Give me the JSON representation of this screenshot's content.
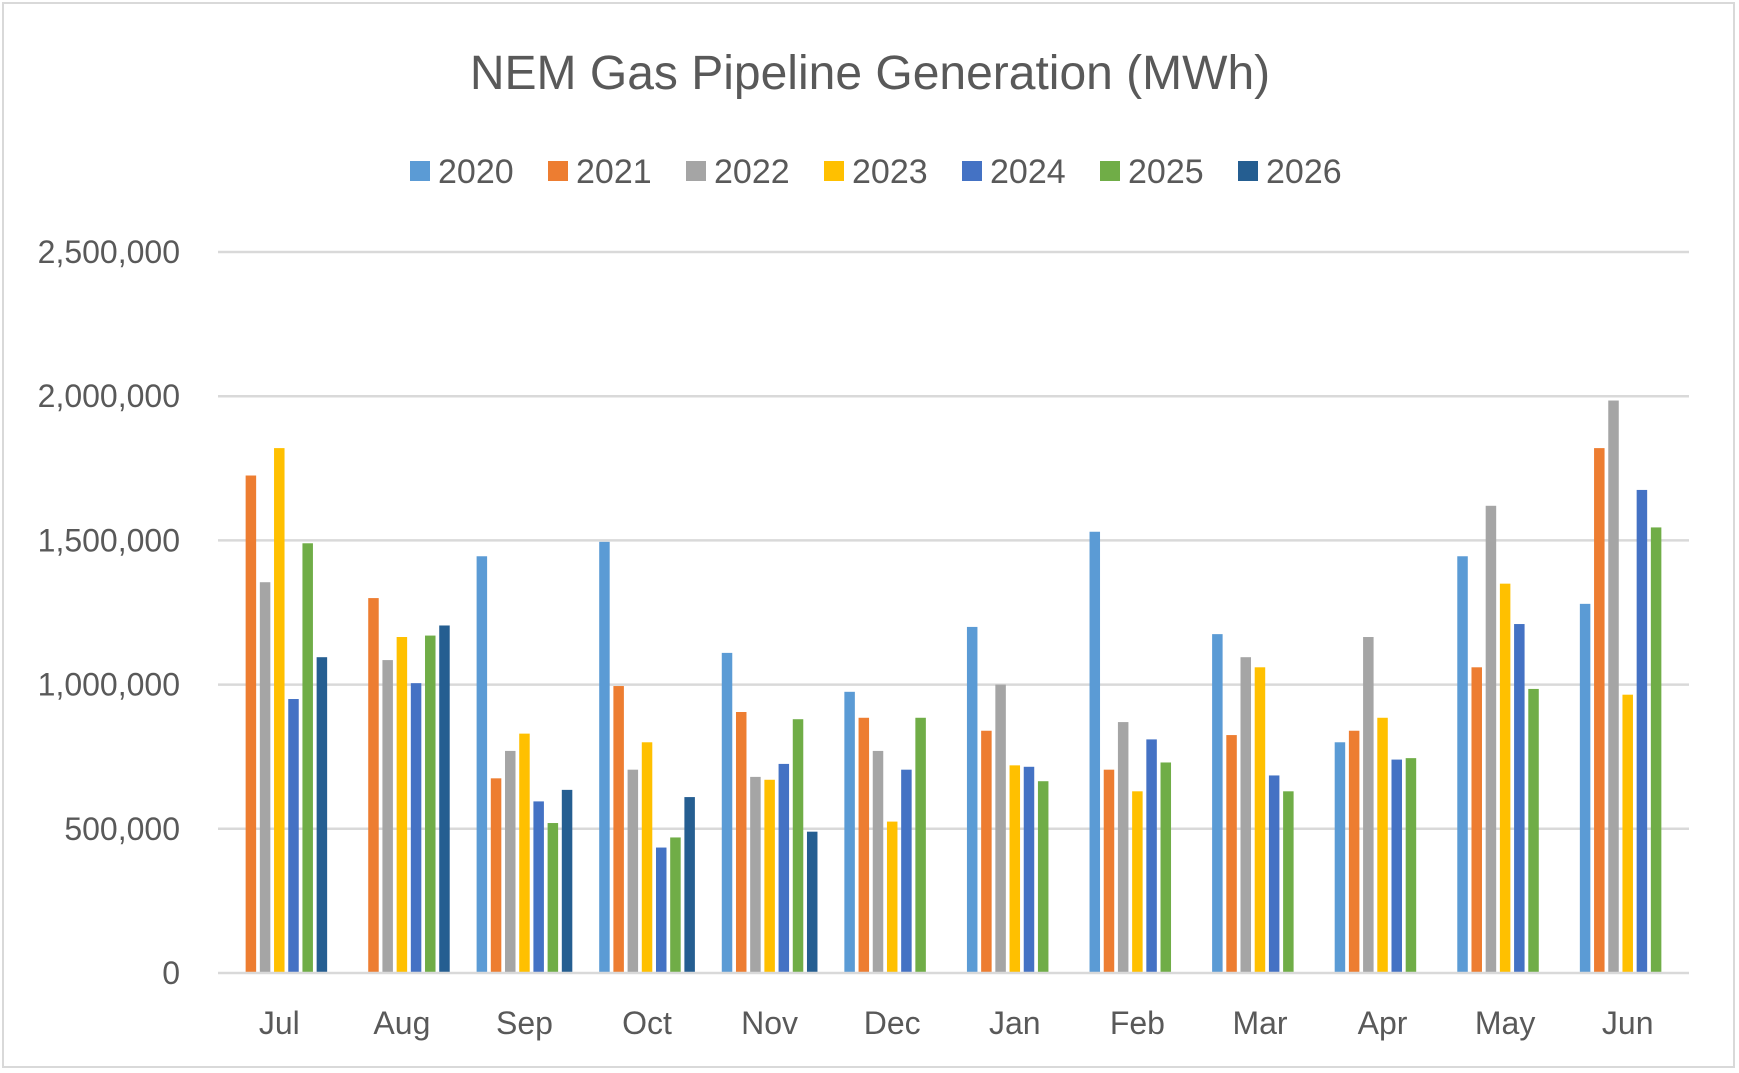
{
  "chart_data": {
    "type": "bar",
    "title": "NEM Gas Pipeline Generation (MWh)",
    "xlabel": "",
    "ylabel": "",
    "ylim": [
      0,
      2500000
    ],
    "yticks": [
      0,
      500000,
      1000000,
      1500000,
      2000000,
      2500000
    ],
    "ytick_labels": [
      "0",
      "500,000",
      "1,000,000",
      "1,500,000",
      "2,000,000",
      "2,500,000"
    ],
    "grid": true,
    "legend_position": "top",
    "categories": [
      "Jul",
      "Aug",
      "Sep",
      "Oct",
      "Nov",
      "Dec",
      "Jan",
      "Feb",
      "Mar",
      "Apr",
      "May",
      "Jun"
    ],
    "series": [
      {
        "name": "2020",
        "color": "#5b9bd5",
        "values": [
          null,
          null,
          1445000,
          1495000,
          1110000,
          975000,
          1200000,
          1530000,
          1175000,
          800000,
          1445000,
          1280000
        ]
      },
      {
        "name": "2021",
        "color": "#ed7d31",
        "values": [
          1725000,
          1300000,
          675000,
          995000,
          905000,
          885000,
          840000,
          705000,
          825000,
          840000,
          1060000,
          1820000
        ]
      },
      {
        "name": "2022",
        "color": "#a5a5a5",
        "values": [
          1355000,
          1085000,
          770000,
          705000,
          680000,
          770000,
          1000000,
          870000,
          1095000,
          1165000,
          1620000,
          1985000
        ]
      },
      {
        "name": "2023",
        "color": "#ffc000",
        "values": [
          1820000,
          1165000,
          830000,
          800000,
          670000,
          525000,
          720000,
          630000,
          1060000,
          885000,
          1350000,
          965000
        ]
      },
      {
        "name": "2024",
        "color": "#4472c4",
        "values": [
          950000,
          1005000,
          595000,
          435000,
          725000,
          705000,
          715000,
          810000,
          685000,
          740000,
          1210000,
          1675000
        ]
      },
      {
        "name": "2025",
        "color": "#70ad47",
        "values": [
          1490000,
          1170000,
          520000,
          470000,
          880000,
          885000,
          665000,
          730000,
          630000,
          745000,
          985000,
          1545000
        ]
      },
      {
        "name": "2026",
        "color": "#255e91",
        "values": [
          1095000,
          1205000,
          635000,
          610000,
          490000,
          null,
          null,
          null,
          null,
          null,
          null,
          null
        ]
      }
    ]
  }
}
